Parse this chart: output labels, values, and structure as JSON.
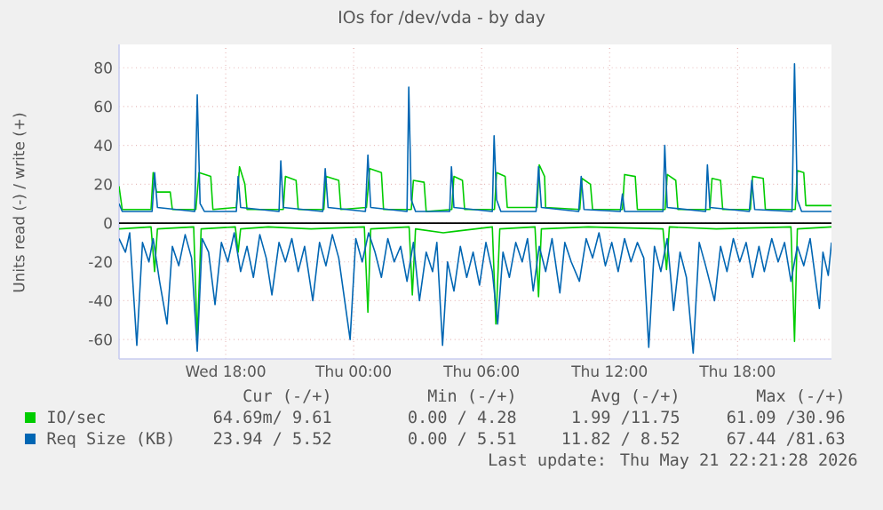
{
  "chart_data": {
    "type": "line",
    "title": "IOs for /dev/vda - by day",
    "ylabel": "Units read (-) / write (+)",
    "xlim": [
      "2026-05-20T13:00",
      "2026-05-21T22:24"
    ],
    "xticks": [
      {
        "value": "2026-05-20T18:00",
        "label": "Wed 18:00"
      },
      {
        "value": "2026-05-21T00:00",
        "label": "Thu 00:00"
      },
      {
        "value": "2026-05-21T06:00",
        "label": "Thu 06:00"
      },
      {
        "value": "2026-05-21T12:00",
        "label": "Thu 12:00"
      },
      {
        "value": "2026-05-21T18:00",
        "label": "Thu 18:00"
      }
    ],
    "ylim": [
      -70,
      92
    ],
    "yticks": [
      -60,
      -40,
      -20,
      0,
      20,
      40,
      60,
      80
    ],
    "grid": true,
    "legend": "bottom",
    "ref_lines": [
      {
        "axis": "y",
        "value": 0,
        "color": "#000000"
      }
    ],
    "series": [
      {
        "color": "#00cc00",
        "x": [
          "2026-05-20T13:00",
          "2026-05-20T14:30",
          "2026-05-20T14:40",
          "2026-05-20T14:48",
          "2026-05-20T16:30",
          "2026-05-20T16:40",
          "2026-05-20T16:51",
          "2026-05-20T18:27",
          "2026-05-20T18:35",
          "2026-05-20T18:42",
          "2026-05-20T20:00",
          "2026-05-20T22:00",
          "2026-05-21T00:30",
          "2026-05-21T00:40",
          "2026-05-21T00:48",
          "2026-05-21T02:36",
          "2026-05-21T02:45",
          "2026-05-21T02:54",
          "2026-05-21T04:12",
          "2026-05-21T06:30",
          "2026-05-21T06:40",
          "2026-05-21T06:51",
          "2026-05-21T08:30",
          "2026-05-21T08:40",
          "2026-05-21T08:48",
          "2026-05-21T11:00",
          "2026-05-21T14:30",
          "2026-05-21T14:40",
          "2026-05-21T14:48",
          "2026-05-21T17:00",
          "2026-05-21T20:30",
          "2026-05-21T20:40",
          "2026-05-21T20:48",
          "2026-05-21T22:24"
        ],
        "values": [
          -3,
          -2,
          -25,
          -3,
          -2,
          -60,
          -3,
          -2,
          -15,
          -3,
          -2,
          -3,
          -2,
          -46,
          -3,
          -2,
          -37,
          -3,
          -5,
          -2,
          -52,
          -3,
          -2,
          -38,
          -3,
          -2,
          -3,
          -24,
          -2,
          -3,
          -2,
          -61,
          -3,
          -2
        ]
      },
      {
        "color": "#0066b3",
        "x": [
          "2026-05-20T13:00",
          "2026-05-20T13:18",
          "2026-05-20T13:30",
          "2026-05-20T13:50",
          "2026-05-20T14:06",
          "2026-05-20T14:24",
          "2026-05-20T14:36",
          "2026-05-20T14:54",
          "2026-05-20T15:15",
          "2026-05-20T15:30",
          "2026-05-20T15:48",
          "2026-05-20T16:06",
          "2026-05-20T16:24",
          "2026-05-20T16:40",
          "2026-05-20T16:54",
          "2026-05-20T17:12",
          "2026-05-20T17:30",
          "2026-05-20T17:48",
          "2026-05-20T18:06",
          "2026-05-20T18:24",
          "2026-05-20T18:42",
          "2026-05-20T19:00",
          "2026-05-20T19:18",
          "2026-05-20T19:36",
          "2026-05-20T19:54",
          "2026-05-20T20:10",
          "2026-05-20T20:30",
          "2026-05-20T20:48",
          "2026-05-20T21:06",
          "2026-05-20T21:24",
          "2026-05-20T21:42",
          "2026-05-20T22:05",
          "2026-05-20T22:24",
          "2026-05-20T22:42",
          "2026-05-20T23:00",
          "2026-05-20T23:18",
          "2026-05-20T23:50",
          "2026-05-21T00:06",
          "2026-05-21T00:24",
          "2026-05-21T00:42",
          "2026-05-21T01:00",
          "2026-05-21T01:18",
          "2026-05-21T01:36",
          "2026-05-21T01:54",
          "2026-05-21T02:12",
          "2026-05-21T02:30",
          "2026-05-21T02:48",
          "2026-05-21T03:05",
          "2026-05-21T03:24",
          "2026-05-21T03:42",
          "2026-05-21T03:54",
          "2026-05-21T04:10",
          "2026-05-21T04:24",
          "2026-05-21T04:42",
          "2026-05-21T05:00",
          "2026-05-21T05:18",
          "2026-05-21T05:36",
          "2026-05-21T05:54",
          "2026-05-21T06:12",
          "2026-05-21T06:30",
          "2026-05-21T06:45",
          "2026-05-21T07:00",
          "2026-05-21T07:18",
          "2026-05-21T07:36",
          "2026-05-21T07:54",
          "2026-05-21T08:09",
          "2026-05-21T08:25",
          "2026-05-21T08:42",
          "2026-05-21T09:00",
          "2026-05-21T09:18",
          "2026-05-21T09:40",
          "2026-05-21T09:54",
          "2026-05-21T10:12",
          "2026-05-21T10:35",
          "2026-05-21T10:54",
          "2026-05-21T11:12",
          "2026-05-21T11:30",
          "2026-05-21T11:48",
          "2026-05-21T12:06",
          "2026-05-21T12:24",
          "2026-05-21T12:42",
          "2026-05-21T13:00",
          "2026-05-21T13:18",
          "2026-05-21T13:36",
          "2026-05-21T13:50",
          "2026-05-21T14:06",
          "2026-05-21T14:24",
          "2026-05-21T14:42",
          "2026-05-21T15:00",
          "2026-05-21T15:18",
          "2026-05-21T15:36",
          "2026-05-21T15:55",
          "2026-05-21T16:12",
          "2026-05-21T16:30",
          "2026-05-21T16:55",
          "2026-05-21T17:12",
          "2026-05-21T17:30",
          "2026-05-21T17:48",
          "2026-05-21T18:06",
          "2026-05-21T18:24",
          "2026-05-21T18:42",
          "2026-05-21T19:00",
          "2026-05-21T19:15",
          "2026-05-21T19:36",
          "2026-05-21T19:54",
          "2026-05-21T20:12",
          "2026-05-21T20:30",
          "2026-05-21T20:48",
          "2026-05-21T21:06",
          "2026-05-21T21:24",
          "2026-05-21T21:50",
          "2026-05-21T22:00",
          "2026-05-21T22:15",
          "2026-05-21T22:24"
        ],
        "values": [
          -8,
          -15,
          -5,
          -63,
          -10,
          -20,
          -8,
          -30,
          -52,
          -12,
          -22,
          -6,
          -18,
          -66,
          -8,
          -15,
          -42,
          -10,
          -20,
          -5,
          -25,
          -12,
          -28,
          -6,
          -18,
          -37,
          -10,
          -20,
          -8,
          -25,
          -12,
          -40,
          -10,
          -22,
          -6,
          -18,
          -60,
          -8,
          -20,
          -5,
          -15,
          -28,
          -8,
          -20,
          -12,
          -30,
          -10,
          -40,
          -15,
          -25,
          -10,
          -63,
          -20,
          -35,
          -12,
          -28,
          -15,
          -32,
          -10,
          -25,
          -52,
          -15,
          -28,
          -10,
          -20,
          -8,
          -35,
          -12,
          -25,
          -8,
          -36,
          -10,
          -20,
          -30,
          -8,
          -18,
          -5,
          -22,
          -10,
          -25,
          -8,
          -20,
          -10,
          -18,
          -64,
          -12,
          -25,
          -8,
          -45,
          -15,
          -28,
          -67,
          -10,
          -22,
          -40,
          -12,
          -25,
          -8,
          -20,
          -10,
          -28,
          -12,
          -25,
          -8,
          -20,
          -10,
          -30,
          -12,
          -22,
          -8,
          -44,
          -15,
          -27,
          -10
        ]
      },
      {
        "name": "IO/sec",
        "color": "#00cc00",
        "x": [
          "2026-05-20T13:00",
          "2026-05-20T13:09",
          "2026-05-20T14:30",
          "2026-05-20T14:36",
          "2026-05-20T14:45",
          "2026-05-20T15:24",
          "2026-05-20T15:30",
          "2026-05-20T16:36",
          "2026-05-20T16:45",
          "2026-05-20T17:18",
          "2026-05-20T17:24",
          "2026-05-20T18:30",
          "2026-05-20T18:39",
          "2026-05-20T18:54",
          "2026-05-20T19:00",
          "2026-05-20T20:42",
          "2026-05-20T20:48",
          "2026-05-20T21:18",
          "2026-05-20T21:24",
          "2026-05-20T22:36",
          "2026-05-20T22:42",
          "2026-05-20T23:18",
          "2026-05-20T23:24",
          "2026-05-21T00:36",
          "2026-05-21T00:45",
          "2026-05-21T01:18",
          "2026-05-21T01:24",
          "2026-05-21T02:42",
          "2026-05-21T02:48",
          "2026-05-21T03:18",
          "2026-05-21T03:24",
          "2026-05-21T04:36",
          "2026-05-21T04:42",
          "2026-05-21T05:06",
          "2026-05-21T05:12",
          "2026-05-21T06:36",
          "2026-05-21T06:42",
          "2026-05-21T07:06",
          "2026-05-21T07:12",
          "2026-05-21T08:36",
          "2026-05-21T08:42",
          "2026-05-21T08:57",
          "2026-05-21T09:00",
          "2026-05-21T10:36",
          "2026-05-21T10:42",
          "2026-05-21T11:06",
          "2026-05-21T11:12",
          "2026-05-21T12:36",
          "2026-05-21T12:42",
          "2026-05-21T13:12",
          "2026-05-21T13:18",
          "2026-05-21T14:36",
          "2026-05-21T14:42",
          "2026-05-21T15:06",
          "2026-05-21T15:12",
          "2026-05-21T16:42",
          "2026-05-21T16:48",
          "2026-05-21T17:12",
          "2026-05-21T17:18",
          "2026-05-21T18:36",
          "2026-05-21T18:42",
          "2026-05-21T19:12",
          "2026-05-21T19:18",
          "2026-05-21T20:42",
          "2026-05-21T20:48",
          "2026-05-21T21:06",
          "2026-05-21T21:12",
          "2026-05-21T22:24"
        ],
        "values": [
          19,
          7,
          7,
          26,
          16,
          16,
          7,
          7,
          26,
          24,
          7,
          8,
          29,
          20,
          7,
          7,
          24,
          22,
          7,
          7,
          24,
          22,
          7,
          8,
          28,
          26,
          7,
          7,
          22,
          21,
          6,
          7,
          24,
          22,
          7,
          7,
          26,
          24,
          8,
          8,
          30,
          24,
          8,
          7,
          23,
          20,
          7,
          7,
          25,
          24,
          7,
          7,
          25,
          22,
          7,
          7,
          23,
          22,
          7,
          7,
          24,
          23,
          7,
          7,
          27,
          26,
          9,
          9
        ]
      },
      {
        "name": "Req Size (KB)",
        "color": "#0066b3",
        "x": [
          "2026-05-20T13:00",
          "2026-05-20T13:09",
          "2026-05-20T14:33",
          "2026-05-20T14:40",
          "2026-05-20T14:48",
          "2026-05-20T16:33",
          "2026-05-20T16:40",
          "2026-05-20T16:48",
          "2026-05-20T17:00",
          "2026-05-20T18:30",
          "2026-05-20T18:35",
          "2026-05-20T18:42",
          "2026-05-20T20:30",
          "2026-05-20T20:35",
          "2026-05-20T20:42",
          "2026-05-20T22:33",
          "2026-05-20T22:40",
          "2026-05-20T22:48",
          "2026-05-21T00:33",
          "2026-05-21T00:40",
          "2026-05-21T00:48",
          "2026-05-21T02:30",
          "2026-05-21T02:35",
          "2026-05-21T02:42",
          "2026-05-21T02:54",
          "2026-05-21T04:30",
          "2026-05-21T04:35",
          "2026-05-21T04:42",
          "2026-05-21T06:30",
          "2026-05-21T06:35",
          "2026-05-21T06:42",
          "2026-05-21T06:54",
          "2026-05-21T08:33",
          "2026-05-21T08:40",
          "2026-05-21T08:48",
          "2026-05-21T10:33",
          "2026-05-21T10:40",
          "2026-05-21T10:48",
          "2026-05-21T12:30",
          "2026-05-21T12:36",
          "2026-05-21T12:42",
          "2026-05-21T14:30",
          "2026-05-21T14:35",
          "2026-05-21T14:42",
          "2026-05-21T16:30",
          "2026-05-21T16:35",
          "2026-05-21T16:42",
          "2026-05-21T18:33",
          "2026-05-21T18:40",
          "2026-05-21T18:48",
          "2026-05-21T20:33",
          "2026-05-21T20:40",
          "2026-05-21T20:48",
          "2026-05-21T21:00",
          "2026-05-21T22:24"
        ],
        "values": [
          10,
          6,
          6,
          26,
          8,
          6,
          66,
          10,
          6,
          6,
          24,
          8,
          6,
          32,
          8,
          6,
          28,
          8,
          6,
          35,
          8,
          6,
          70,
          12,
          6,
          6,
          29,
          8,
          6,
          45,
          12,
          6,
          6,
          29,
          8,
          6,
          24,
          7,
          6,
          15,
          6,
          6,
          40,
          8,
          6,
          30,
          8,
          6,
          22,
          7,
          6,
          82,
          12,
          6,
          6
        ]
      }
    ],
    "annotations": [
      "Cur (-/+)",
      "Min (-/+)",
      "Avg (-/+)",
      "Max (-/+)",
      "64.69m/ 9.61",
      "0.00 / 4.28",
      "1.99 /11.75",
      "61.09 /30.96",
      "23.94 / 5.52",
      "0.00 / 5.51",
      "11.82 / 8.52",
      "67.44 /81.63",
      "Last update: Thu May 21 22:21:28 2026"
    ]
  }
}
